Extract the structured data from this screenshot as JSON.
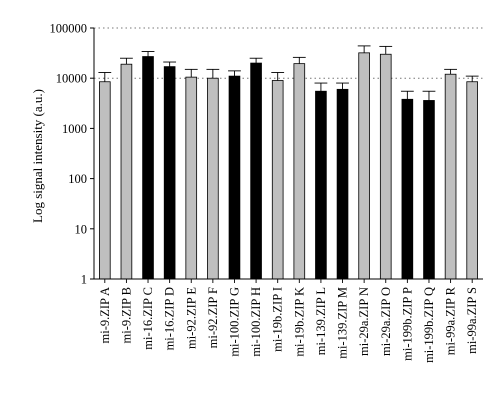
{
  "chart_data": {
    "type": "bar",
    "ylabel": "Log signal intensity (a.u.)",
    "yscale": "log",
    "ylim": [
      1,
      100000
    ],
    "y_ticks": [
      "1",
      "10",
      "100",
      "1000",
      "10000",
      "100000"
    ],
    "y_tick_values": [
      1,
      10,
      100,
      1000,
      10000,
      100000
    ],
    "grid": "dotted horizontal at 10000 and 100000",
    "legend": "none",
    "categories": [
      "mi-9.ZIP A",
      "mi-9.ZIP B",
      "mi-16.ZIP C",
      "mi-16.ZIP D",
      "mi-92.ZIP E",
      "mi-92.ZIP F",
      "mi-100.ZIP G",
      "mi-100.ZIP H",
      "mi-19b.ZIP I",
      "mi-19b.ZIP K",
      "mi-139.ZIP L",
      "mi-139.ZIP M",
      "mi-29a.ZIP N",
      "mi-29a.ZIP O",
      "mi-199b.ZIP P",
      "mi-199b.ZIP Q",
      "mi-99a.ZIP R",
      "mi-99a.ZIP S"
    ],
    "values": [
      8500,
      19000,
      27000,
      17000,
      10500,
      10000,
      11000,
      20000,
      9000,
      19500,
      5500,
      6000,
      32000,
      30000,
      3800,
      3600,
      12000,
      8500
    ],
    "errors_upper": [
      13000,
      25000,
      34000,
      21000,
      15000,
      15000,
      14000,
      25000,
      13000,
      26000,
      8000,
      8000,
      44000,
      43000,
      5500,
      5500,
      15000,
      11000
    ],
    "bar_colors": [
      "#bfbfbf",
      "#bfbfbf",
      "#000000",
      "#000000",
      "#bfbfbf",
      "#bfbfbf",
      "#000000",
      "#000000",
      "#bfbfbf",
      "#bfbfbf",
      "#000000",
      "#000000",
      "#bfbfbf",
      "#bfbfbf",
      "#000000",
      "#000000",
      "#bfbfbf",
      "#bfbfbf"
    ]
  }
}
